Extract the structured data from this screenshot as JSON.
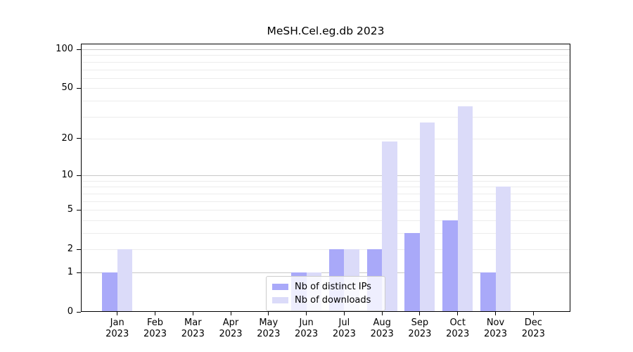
{
  "chart_data": {
    "type": "bar",
    "title": "MeSH.Cel.eg.db 2023",
    "categories": [
      "Jan",
      "Feb",
      "Mar",
      "Apr",
      "May",
      "Jun",
      "Jul",
      "Aug",
      "Sep",
      "Oct",
      "Nov",
      "Dec"
    ],
    "category_year": "2023",
    "series": [
      {
        "name": "Nb of distinct IPs",
        "color": "#a9a9f9",
        "values": [
          1,
          0,
          0,
          0,
          0,
          1,
          2,
          2,
          3,
          4,
          1,
          0
        ]
      },
      {
        "name": "Nb of downloads",
        "color": "#dbdbf9",
        "values": [
          2,
          0,
          0,
          0,
          0,
          1,
          2,
          19,
          27,
          36,
          8,
          0
        ]
      }
    ],
    "yscale": "log1p",
    "ylim": [
      0,
      113
    ],
    "y_ticks": [
      0,
      1,
      2,
      5,
      10,
      20,
      50,
      100
    ],
    "y_gridline_values": [
      1,
      2,
      3,
      4,
      5,
      6,
      7,
      8,
      9,
      10,
      20,
      30,
      40,
      50,
      60,
      70,
      80,
      90,
      100
    ],
    "y_gridline_major_values": [
      1,
      10,
      100
    ],
    "grid_color_minor": "#ececec",
    "grid_color_major": "#c8c8c8",
    "axis_color": "#000000",
    "legend": {
      "position": "lower center",
      "entries": [
        "Nb of distinct IPs",
        "Nb of downloads"
      ]
    }
  }
}
